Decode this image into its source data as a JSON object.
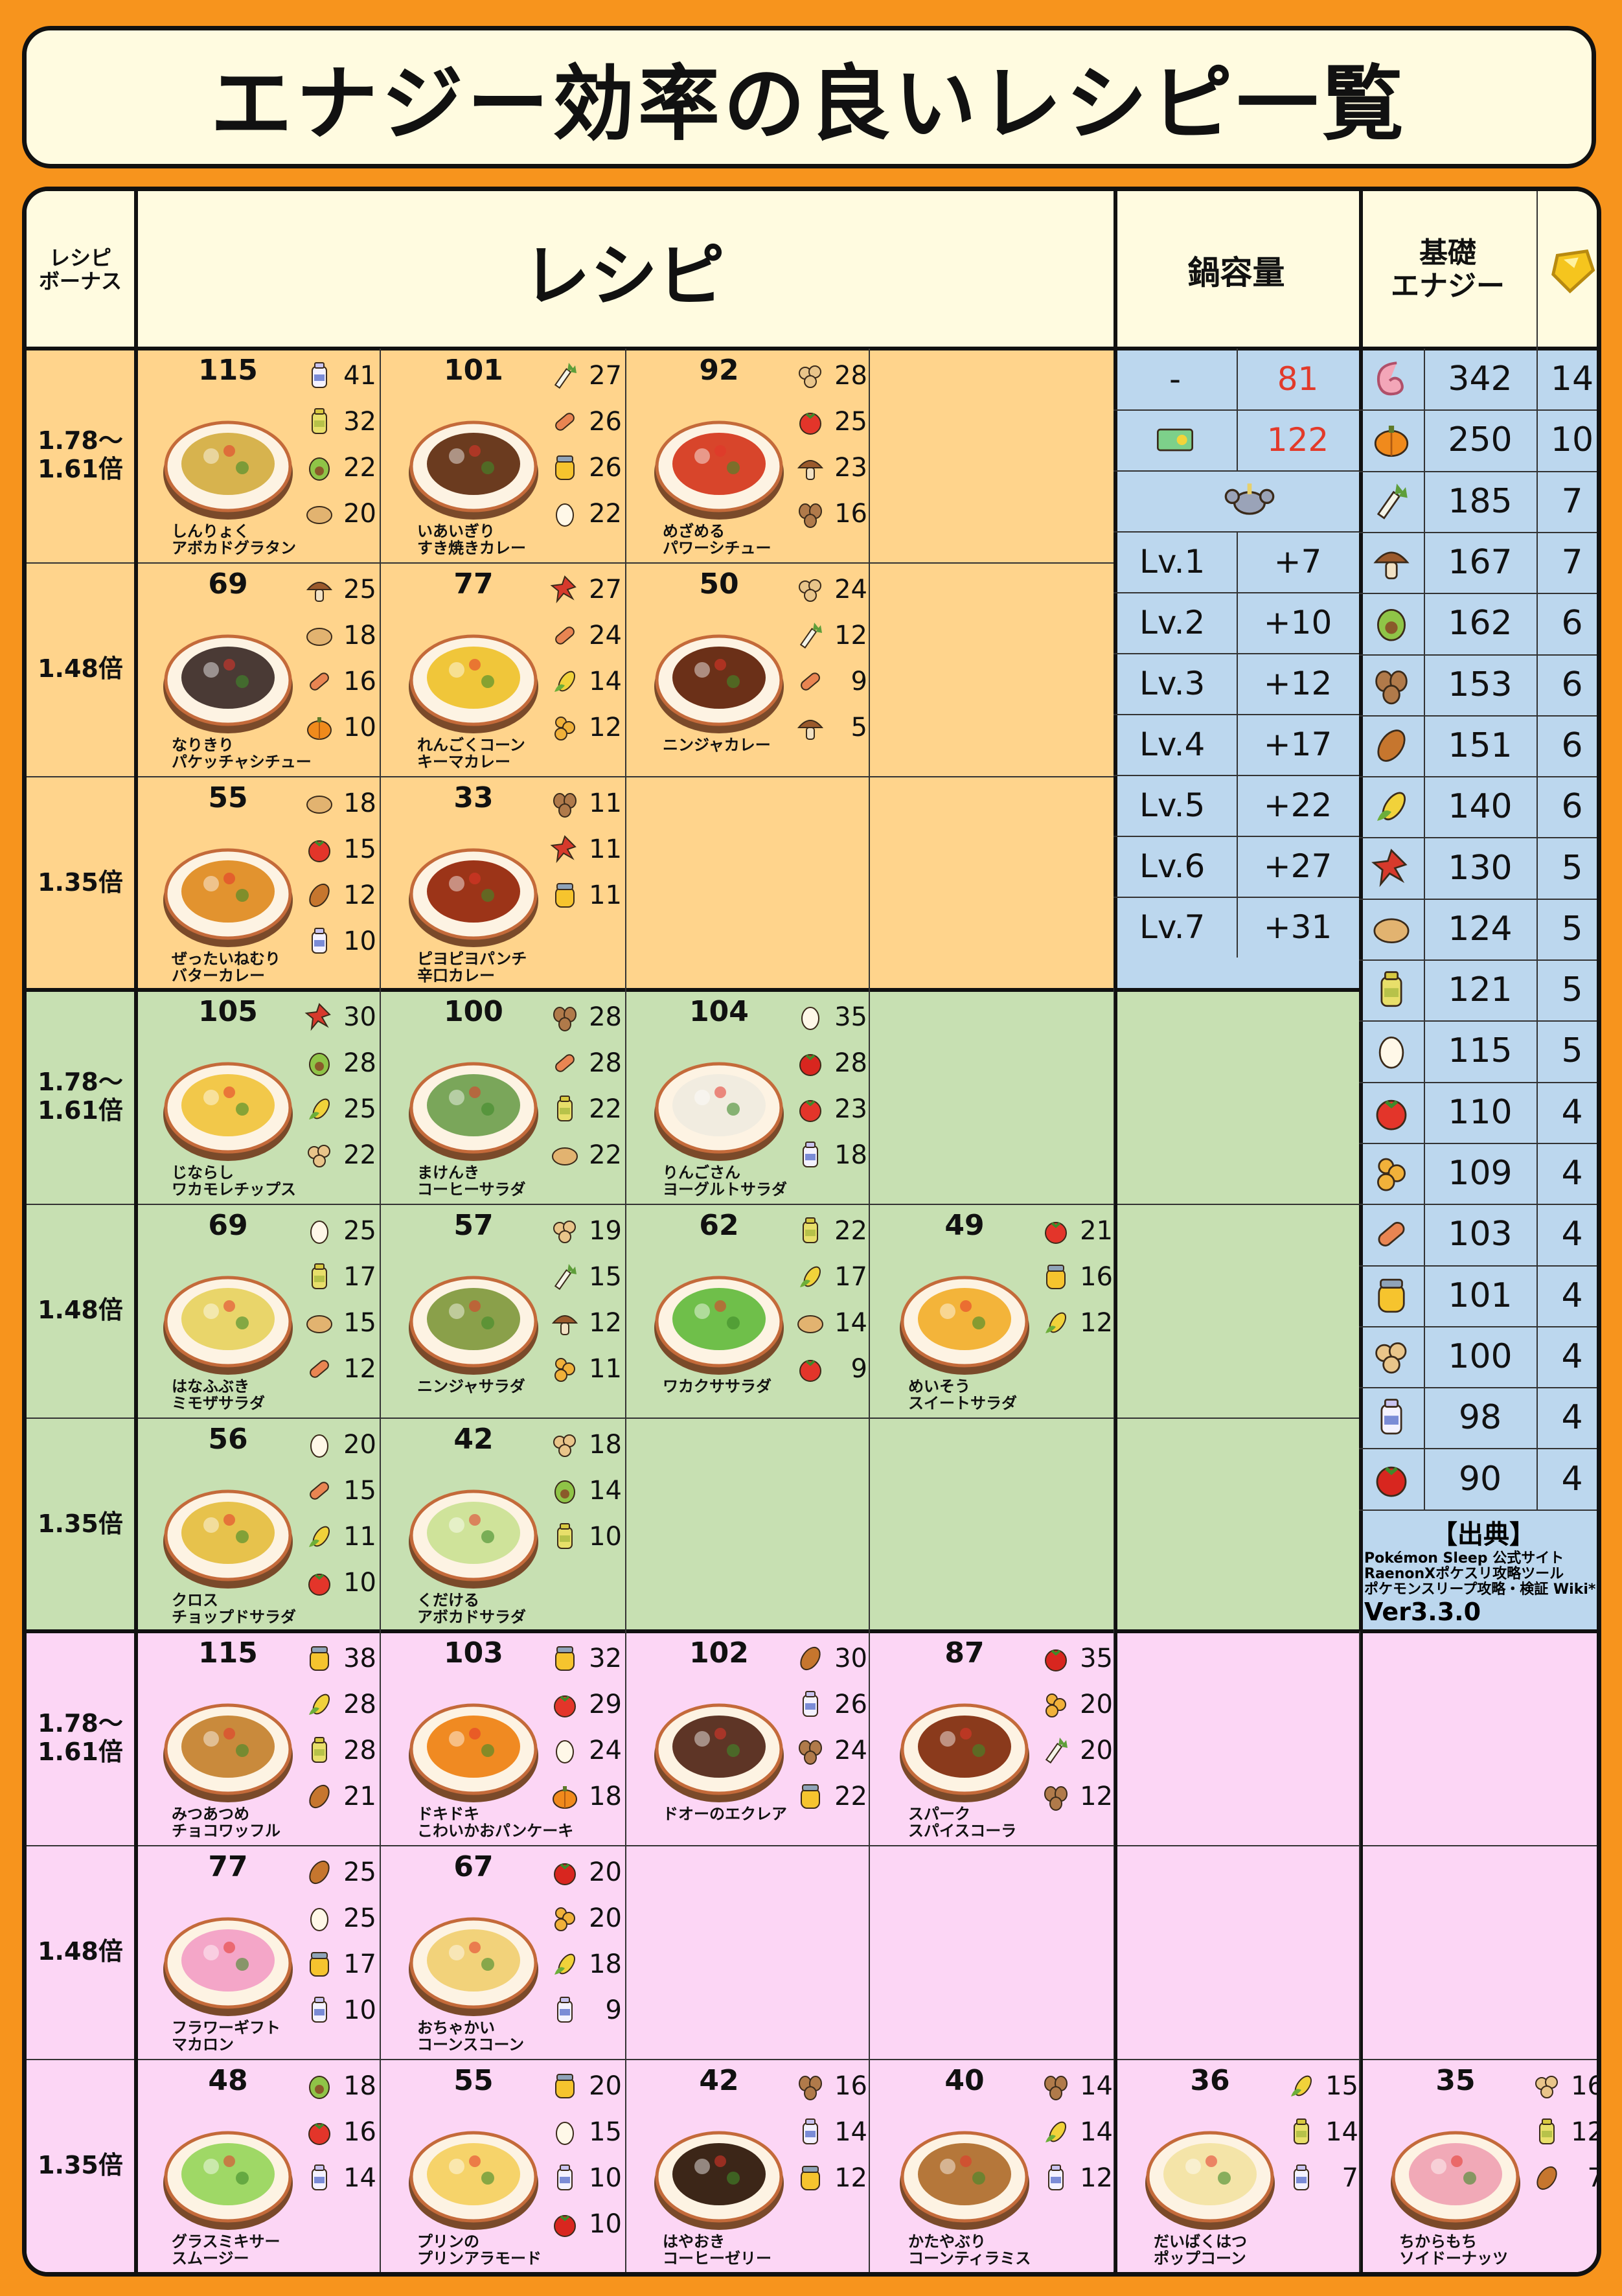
{
  "title": "エナジー効率の良いレシピ一覧",
  "headers": {
    "bonus": "レシピ\nボーナス",
    "recipe": "レシピ",
    "capacity": "鍋容量",
    "base_energy": "基礎\nエナジー"
  },
  "capacity": {
    "rows": [
      {
        "label": "-",
        "value": "81",
        "icon": ""
      },
      {
        "label": "",
        "value": "122",
        "icon": "ticket-icon"
      },
      {
        "label": "",
        "value": "",
        "icon": "crab-pokemon-icon"
      },
      {
        "label": "Lv.1",
        "value": "+7"
      },
      {
        "label": "Lv.2",
        "value": "+10"
      },
      {
        "label": "Lv.3",
        "value": "+12"
      },
      {
        "label": "Lv.4",
        "value": "+17"
      },
      {
        "label": "Lv.5",
        "value": "+22"
      },
      {
        "label": "Lv.6",
        "value": "+27"
      },
      {
        "label": "Lv.7",
        "value": "+31"
      }
    ]
  },
  "ingredients_energy": [
    {
      "icon": "tail-icon",
      "energy": "342",
      "strength": "14"
    },
    {
      "icon": "pumpkin-icon",
      "energy": "250",
      "strength": "10"
    },
    {
      "icon": "leek-icon",
      "energy": "185",
      "strength": "7"
    },
    {
      "icon": "mushroom-icon",
      "energy": "167",
      "strength": "7"
    },
    {
      "icon": "avocado-icon",
      "energy": "162",
      "strength": "6"
    },
    {
      "icon": "coffee-beans-icon",
      "energy": "153",
      "strength": "6"
    },
    {
      "icon": "cacao-icon",
      "energy": "151",
      "strength": "6"
    },
    {
      "icon": "corn-icon",
      "energy": "140",
      "strength": "6"
    },
    {
      "icon": "herb-icon",
      "energy": "130",
      "strength": "5"
    },
    {
      "icon": "potato-icon",
      "energy": "124",
      "strength": "5"
    },
    {
      "icon": "oil-icon",
      "energy": "121",
      "strength": "5"
    },
    {
      "icon": "egg-icon",
      "energy": "115",
      "strength": "5"
    },
    {
      "icon": "tomato-icon",
      "energy": "110",
      "strength": "4"
    },
    {
      "icon": "ginger-icon",
      "energy": "109",
      "strength": "4"
    },
    {
      "icon": "sausage-icon",
      "energy": "103",
      "strength": "4"
    },
    {
      "icon": "honey-icon",
      "energy": "101",
      "strength": "4"
    },
    {
      "icon": "soybean-icon",
      "energy": "100",
      "strength": "4"
    },
    {
      "icon": "milk-icon",
      "energy": "98",
      "strength": "4"
    },
    {
      "icon": "apple-icon",
      "energy": "90",
      "strength": "4"
    }
  ],
  "sources": {
    "title": "【出典】",
    "lines": [
      "Pokémon Sleep 公式サイト",
      "RaenonXポケスリ攻略ツール",
      "ポケモンスリープ攻略・検証 Wiki*"
    ],
    "version": "Ver3.3.0"
  },
  "sections": [
    {
      "name": "curry",
      "color": "#ffd48c",
      "rows": [
        {
          "bonus": "1.78〜\n1.61倍",
          "recipes": [
            {
              "energy": "115",
              "name": "しんりょく\nアボカドグラタン",
              "dish": "#d7b34e",
              "ings": [
                [
                  "milk-icon",
                  "41"
                ],
                [
                  "oil-icon",
                  "32"
                ],
                [
                  "avocado-icon",
                  "22"
                ],
                [
                  "potato-icon",
                  "20"
                ]
              ]
            },
            {
              "energy": "101",
              "name": "いあいぎり\nすき焼きカレー",
              "dish": "#6b3b1f",
              "ings": [
                [
                  "leek-icon",
                  "27"
                ],
                [
                  "sausage-icon",
                  "26"
                ],
                [
                  "honey-icon",
                  "26"
                ],
                [
                  "egg-icon",
                  "22"
                ]
              ]
            },
            {
              "energy": "92",
              "name": "めざめる\nパワーシチュー",
              "dish": "#d8452b",
              "ings": [
                [
                  "soybean-icon",
                  "28"
                ],
                [
                  "tomato-icon",
                  "25"
                ],
                [
                  "mushroom-icon",
                  "23"
                ],
                [
                  "coffee-beans-icon",
                  "16"
                ]
              ]
            }
          ]
        },
        {
          "bonus": "1.48倍",
          "recipes": [
            {
              "energy": "69",
              "name": "なりきり\nパケッチャシチュー",
              "dish": "#4a3a35",
              "ings": [
                [
                  "mushroom-icon",
                  "25"
                ],
                [
                  "potato-icon",
                  "18"
                ],
                [
                  "sausage-icon",
                  "16"
                ],
                [
                  "pumpkin-icon",
                  "10"
                ]
              ]
            },
            {
              "energy": "77",
              "name": "れんごくコーン\nキーマカレー",
              "dish": "#f0c63a",
              "ings": [
                [
                  "herb-icon",
                  "27"
                ],
                [
                  "sausage-icon",
                  "24"
                ],
                [
                  "corn-icon",
                  "14"
                ],
                [
                  "ginger-icon",
                  "12"
                ]
              ]
            },
            {
              "energy": "50",
              "name": "ニンジャカレー",
              "dish": "#6b3018",
              "ings": [
                [
                  "soybean-icon",
                  "24"
                ],
                [
                  "leek-icon",
                  "12"
                ],
                [
                  "sausage-icon",
                  "9"
                ],
                [
                  "mushroom-icon",
                  "5"
                ]
              ]
            }
          ]
        },
        {
          "bonus": "1.35倍",
          "recipes": [
            {
              "energy": "55",
              "name": "ぜったいねむり\nバターカレー",
              "dish": "#e2932f",
              "ings": [
                [
                  "potato-icon",
                  "18"
                ],
                [
                  "tomato-icon",
                  "15"
                ],
                [
                  "cacao-icon",
                  "12"
                ],
                [
                  "milk-icon",
                  "10"
                ]
              ]
            },
            {
              "energy": "33",
              "name": "ピヨピヨパンチ\n辛口カレー",
              "dish": "#9c3418",
              "ings": [
                [
                  "coffee-beans-icon",
                  "11"
                ],
                [
                  "herb-icon",
                  "11"
                ],
                [
                  "honey-icon",
                  "11"
                ]
              ]
            }
          ]
        }
      ]
    },
    {
      "name": "salad",
      "color": "#c7e0b2",
      "rows": [
        {
          "bonus": "1.78〜\n1.61倍",
          "recipes": [
            {
              "energy": "105",
              "name": "じならし\nワカモレチップス",
              "dish": "#f2c84a",
              "ings": [
                [
                  "herb-icon",
                  "30"
                ],
                [
                  "avocado-icon",
                  "28"
                ],
                [
                  "corn-icon",
                  "25"
                ],
                [
                  "soybean-icon",
                  "22"
                ]
              ]
            },
            {
              "energy": "100",
              "name": "まけんき\nコーヒーサラダ",
              "dish": "#7aa65a",
              "ings": [
                [
                  "coffee-beans-icon",
                  "28"
                ],
                [
                  "sausage-icon",
                  "28"
                ],
                [
                  "oil-icon",
                  "22"
                ],
                [
                  "potato-icon",
                  "22"
                ]
              ]
            },
            {
              "energy": "104",
              "name": "りんごさん\nヨーグルトサラダ",
              "dish": "#f1ece0",
              "ings": [
                [
                  "egg-icon",
                  "35"
                ],
                [
                  "apple-icon",
                  "28"
                ],
                [
                  "tomato-icon",
                  "23"
                ],
                [
                  "milk-icon",
                  "18"
                ]
              ]
            }
          ]
        },
        {
          "bonus": "1.48倍",
          "recipes": [
            {
              "energy": "69",
              "name": "はなふぶき\nミモザサラダ",
              "dish": "#e9d56a",
              "ings": [
                [
                  "egg-icon",
                  "25"
                ],
                [
                  "oil-icon",
                  "17"
                ],
                [
                  "potato-icon",
                  "15"
                ],
                [
                  "sausage-icon",
                  "12"
                ]
              ]
            },
            {
              "energy": "57",
              "name": "ニンジャサラダ",
              "dish": "#8aa04a",
              "ings": [
                [
                  "soybean-icon",
                  "19"
                ],
                [
                  "leek-icon",
                  "15"
                ],
                [
                  "mushroom-icon",
                  "12"
                ],
                [
                  "ginger-icon",
                  "11"
                ]
              ]
            },
            {
              "energy": "62",
              "name": "ワカクササラダ",
              "dish": "#6fbf4a",
              "ings": [
                [
                  "oil-icon",
                  "22"
                ],
                [
                  "corn-icon",
                  "17"
                ],
                [
                  "potato-icon",
                  "14"
                ],
                [
                  "tomato-icon",
                  "9"
                ]
              ]
            },
            {
              "energy": "49",
              "name": "めいそう\nスイートサラダ",
              "dish": "#f3b43a",
              "ings": [
                [
                  "tomato-icon",
                  "21"
                ],
                [
                  "honey-icon",
                  "16"
                ],
                [
                  "corn-icon",
                  "12"
                ]
              ]
            }
          ]
        },
        {
          "bonus": "1.35倍",
          "recipes": [
            {
              "energy": "56",
              "name": "クロス\nチョップドサラダ",
              "dish": "#e7c24c",
              "ings": [
                [
                  "egg-icon",
                  "20"
                ],
                [
                  "sausage-icon",
                  "15"
                ],
                [
                  "corn-icon",
                  "11"
                ],
                [
                  "tomato-icon",
                  "10"
                ]
              ]
            },
            {
              "energy": "42",
              "name": "くだける\nアボカドサラダ",
              "dish": "#cfe39a",
              "ings": [
                [
                  "soybean-icon",
                  "18"
                ],
                [
                  "avocado-icon",
                  "14"
                ],
                [
                  "oil-icon",
                  "10"
                ]
              ]
            }
          ]
        }
      ]
    },
    {
      "name": "dessert",
      "color": "#fcd6f5",
      "rows": [
        {
          "bonus": "1.78〜\n1.61倍",
          "recipes": [
            {
              "energy": "115",
              "name": "みつあつめ\nチョコワッフル",
              "dish": "#c98a3c",
              "ings": [
                [
                  "honey-icon",
                  "38"
                ],
                [
                  "corn-icon",
                  "28"
                ],
                [
                  "oil-icon",
                  "28"
                ],
                [
                  "cacao-icon",
                  "21"
                ]
              ]
            },
            {
              "energy": "103",
              "name": "ドキドキ\nこわいかおパンケーキ",
              "dish": "#f08a22",
              "ings": [
                [
                  "honey-icon",
                  "32"
                ],
                [
                  "tomato-icon",
                  "29"
                ],
                [
                  "egg-icon",
                  "24"
                ],
                [
                  "pumpkin-icon",
                  "18"
                ]
              ]
            },
            {
              "energy": "102",
              "name": "ドオーのエクレア",
              "dish": "#5e3526",
              "ings": [
                [
                  "cacao-icon",
                  "30"
                ],
                [
                  "milk-icon",
                  "26"
                ],
                [
                  "coffee-beans-icon",
                  "24"
                ],
                [
                  "honey-icon",
                  "22"
                ]
              ]
            },
            {
              "energy": "87",
              "name": "スパーク\nスパイスコーラ",
              "dish": "#8a3a1c",
              "ings": [
                [
                  "apple-icon",
                  "35"
                ],
                [
                  "ginger-icon",
                  "20"
                ],
                [
                  "leek-icon",
                  "20"
                ],
                [
                  "coffee-beans-icon",
                  "12"
                ]
              ]
            }
          ]
        },
        {
          "bonus": "1.48倍",
          "recipes": [
            {
              "energy": "77",
              "name": "フラワーギフト\nマカロン",
              "dish": "#f4a6c8",
              "ings": [
                [
                  "cacao-icon",
                  "25"
                ],
                [
                  "egg-icon",
                  "25"
                ],
                [
                  "honey-icon",
                  "17"
                ],
                [
                  "milk-icon",
                  "10"
                ]
              ]
            },
            {
              "energy": "67",
              "name": "おちゃかい\nコーンスコーン",
              "dish": "#f2d27a",
              "ings": [
                [
                  "apple-icon",
                  "20"
                ],
                [
                  "ginger-icon",
                  "20"
                ],
                [
                  "corn-icon",
                  "18"
                ],
                [
                  "milk-icon",
                  "9"
                ]
              ]
            }
          ]
        },
        {
          "bonus": "1.35倍",
          "recipes": [
            {
              "energy": "48",
              "name": "グラスミキサー\nスムージー",
              "dish": "#9fd866",
              "ings": [
                [
                  "avocado-icon",
                  "18"
                ],
                [
                  "tomato-icon",
                  "16"
                ],
                [
                  "milk-icon",
                  "14"
                ]
              ]
            },
            {
              "energy": "55",
              "name": "プリンの\nプリンアラモード",
              "dish": "#f6d36a",
              "ings": [
                [
                  "honey-icon",
                  "20"
                ],
                [
                  "egg-icon",
                  "15"
                ],
                [
                  "milk-icon",
                  "10"
                ],
                [
                  "apple-icon",
                  "10"
                ]
              ]
            },
            {
              "energy": "42",
              "name": "はやおき\nコーヒーゼリー",
              "dish": "#3c2618",
              "ings": [
                [
                  "coffee-beans-icon",
                  "16"
                ],
                [
                  "milk-icon",
                  "14"
                ],
                [
                  "honey-icon",
                  "12"
                ]
              ]
            },
            {
              "energy": "40",
              "name": "かたやぶり\nコーンティラミス",
              "dish": "#b5773a",
              "ings": [
                [
                  "coffee-beans-icon",
                  "14"
                ],
                [
                  "corn-icon",
                  "14"
                ],
                [
                  "milk-icon",
                  "12"
                ]
              ]
            },
            {
              "energy": "36",
              "name": "だいばくはつ\nポップコーン",
              "dish": "#f4e4a8",
              "ings": [
                [
                  "corn-icon",
                  "15"
                ],
                [
                  "oil-icon",
                  "14"
                ],
                [
                  "milk-icon",
                  "7"
                ]
              ]
            },
            {
              "energy": "35",
              "name": "ちからもち\nソイドーナッツ",
              "dish": "#f1a9b7",
              "ings": [
                [
                  "soybean-icon",
                  "16"
                ],
                [
                  "oil-icon",
                  "12"
                ],
                [
                  "cacao-icon",
                  "7"
                ]
              ]
            }
          ]
        }
      ]
    }
  ],
  "icon_colors": {
    "tail-icon": "#f3a6b8",
    "pumpkin-icon": "#f08a1c",
    "leek-icon": "#5e9e3a",
    "mushroom-icon": "#9b5a2c",
    "avocado-icon": "#8fc447",
    "coffee-beans-icon": "#b07a4a",
    "cacao-icon": "#c6762e",
    "corn-icon": "#f1d23a",
    "herb-icon": "#d73a2c",
    "potato-icon": "#e2b370",
    "oil-icon": "#e8df6a",
    "egg-icon": "#fff8e8",
    "tomato-icon": "#e3352a",
    "ginger-icon": "#f1b13a",
    "sausage-icon": "#e98552",
    "honey-icon": "#f6c42e",
    "milk-icon": "#f4f2ff",
    "soybean-icon": "#e9c58a",
    "apple-icon": "#d8261f",
    "ticket-icon": "#7dd08a",
    "crab-pokemon-icon": "#8b93a8"
  }
}
